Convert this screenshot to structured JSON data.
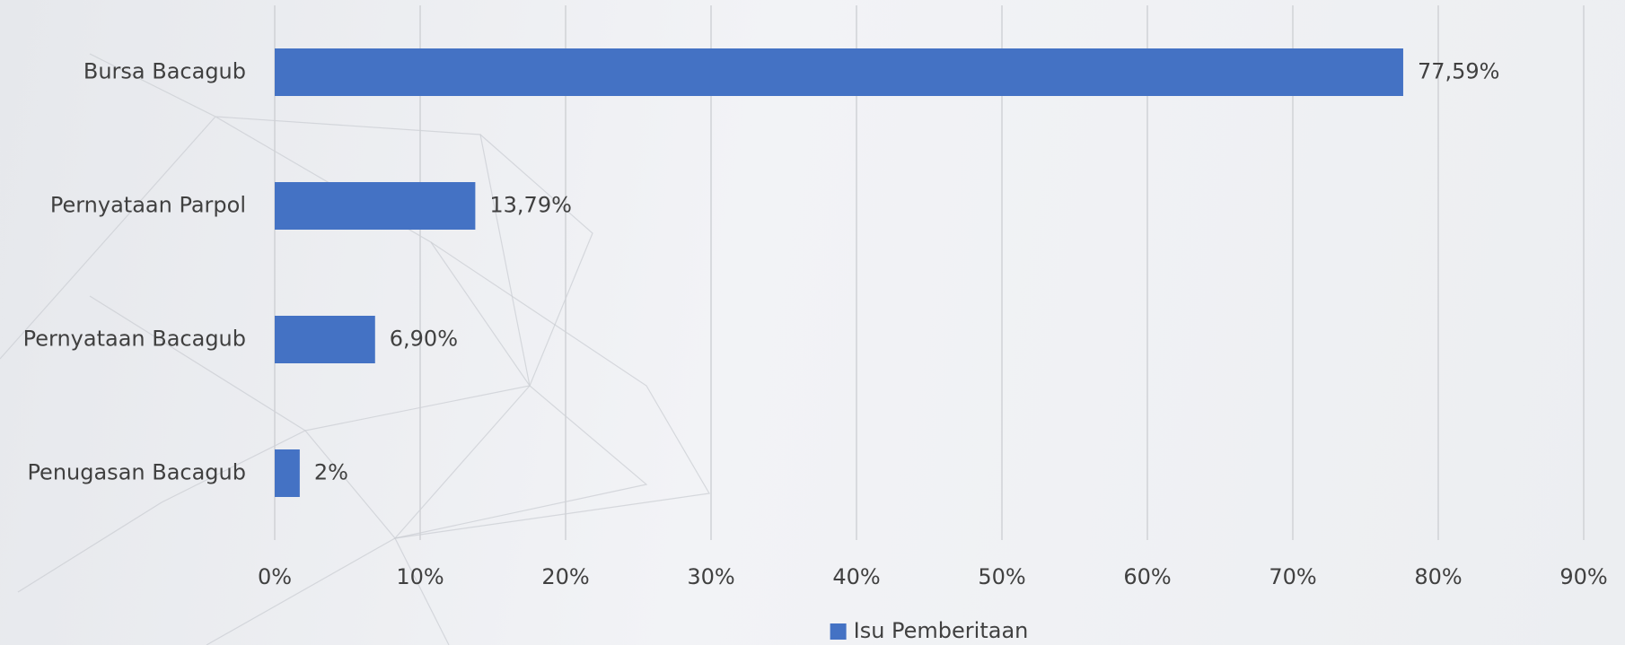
{
  "chart_data": {
    "type": "bar",
    "orientation": "horizontal",
    "categories": [
      "Bursa Bacagub",
      "Pernyataan Parpol",
      "Pernyataan Bacagub",
      "Penugasan Bacagub"
    ],
    "series": [
      {
        "name": "Isu Pemberitaan",
        "color": "#4472c4",
        "values": [
          77.59,
          13.79,
          6.9,
          1.72
        ],
        "value_labels": [
          "77,59%",
          "13,79%",
          "6,90%",
          "2%"
        ]
      }
    ],
    "xlim": [
      0,
      90
    ],
    "xticks": [
      {
        "value": 0,
        "label": "0%"
      },
      {
        "value": 10,
        "label": "10%"
      },
      {
        "value": 20,
        "label": "20%"
      },
      {
        "value": 30,
        "label": "30%"
      },
      {
        "value": 40,
        "label": "40%"
      },
      {
        "value": 50,
        "label": "50%"
      },
      {
        "value": 60,
        "label": "60%"
      },
      {
        "value": 70,
        "label": "70%"
      },
      {
        "value": 80,
        "label": "80%"
      },
      {
        "value": 90,
        "label": "90%"
      }
    ],
    "grid": true,
    "legend": "bottom"
  }
}
